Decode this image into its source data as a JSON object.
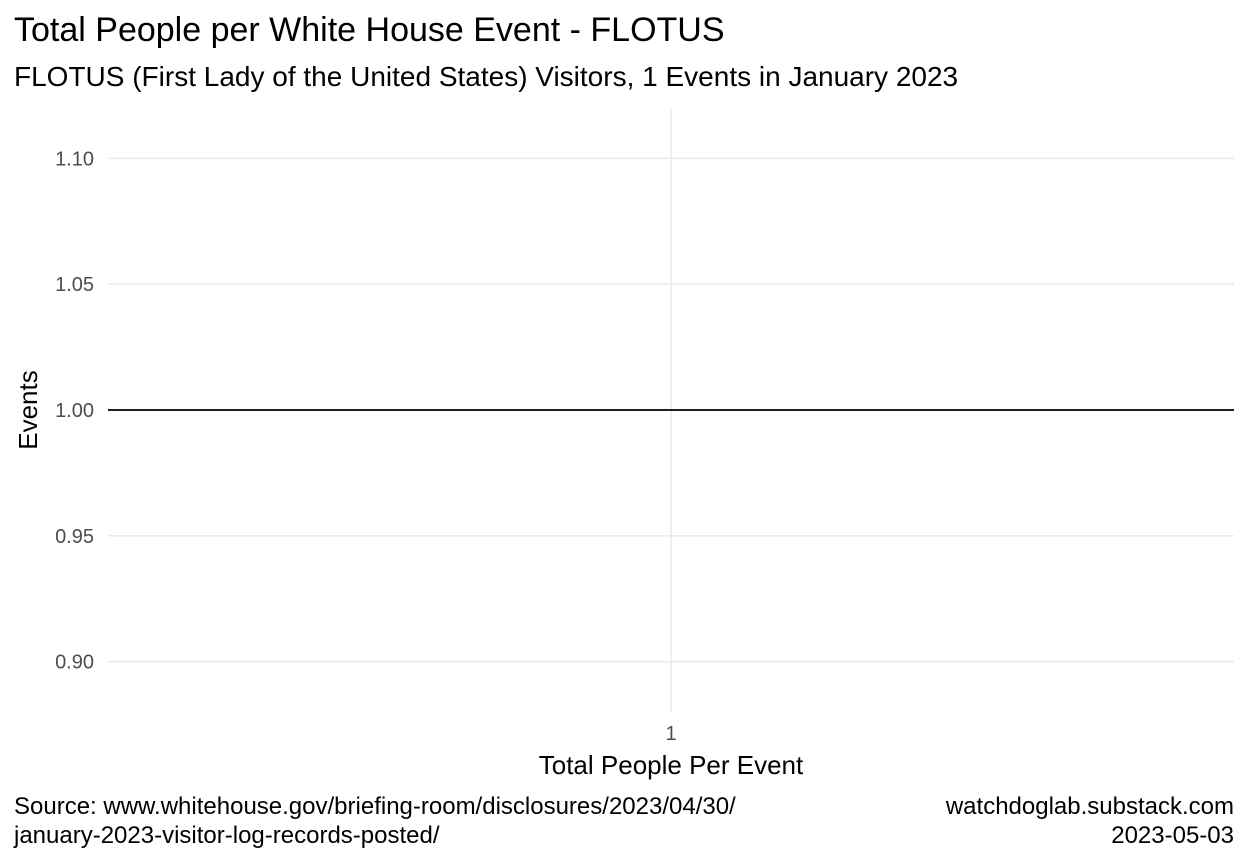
{
  "chart_data": {
    "type": "line",
    "title": "Total People per White House Event - FLOTUS",
    "subtitle": "FLOTUS (First Lady of the United States) Visitors, 1 Events in January 2023",
    "xlabel": "Total People Per Event",
    "ylabel": "Events",
    "x_categories": [
      "1"
    ],
    "y_ticks": [
      "0.90",
      "0.95",
      "1.00",
      "1.05",
      "1.10"
    ],
    "ylim": [
      0.88,
      1.12
    ],
    "grid": true,
    "line_color": "#000000",
    "series": [
      {
        "x_start": 0.4,
        "x_end": 1.6,
        "values": [
          1.0,
          1.0
        ]
      }
    ]
  },
  "caption": {
    "source_lines": [
      "Source: www.whitehouse.gov/briefing-room/disclosures/2023/04/30/",
      "january-2023-visitor-log-records-posted/"
    ],
    "credit_lines": [
      "watchdoglab.substack.com",
      "2023-05-03"
    ]
  }
}
